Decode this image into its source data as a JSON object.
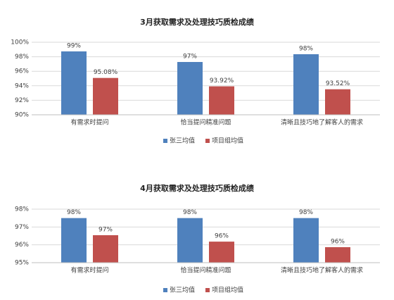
{
  "chart_data": [
    {
      "type": "bar",
      "title": "3月获取需求及处理技巧质检成绩",
      "categories": [
        "有需求时提问",
        "恰当提问精准问题",
        "清晰且技巧地了解客人的需求"
      ],
      "series": [
        {
          "name": "张三均值",
          "color": "#4f81bd",
          "values": [
            98.74,
            97.28,
            98.35
          ],
          "value_labels": [
            "99%",
            "97%",
            "98%"
          ]
        },
        {
          "name": "项目组均值",
          "color": "#c0504d",
          "values": [
            95.08,
            93.92,
            93.52
          ],
          "value_labels": [
            "95.08%",
            "93.92%",
            "93.52%"
          ]
        }
      ],
      "ylim": [
        90,
        100
      ],
      "yticks": [
        {
          "value": 90,
          "label": "90%"
        },
        {
          "value": 92,
          "label": "92%"
        },
        {
          "value": 94,
          "label": "94%"
        },
        {
          "value": 96,
          "label": "96%"
        },
        {
          "value": 98,
          "label": "98%"
        },
        {
          "value": 100,
          "label": "100%"
        }
      ],
      "grid": true,
      "legend": "bottom"
    },
    {
      "type": "bar",
      "title": "4月获取需求及处理技巧质检成绩",
      "categories": [
        "有需求时提问",
        "恰当提问精准问题",
        "清晰且技巧地了解客人的需求"
      ],
      "series": [
        {
          "name": "张三均值",
          "color": "#4f81bd",
          "values": [
            97.5,
            97.5,
            97.5
          ],
          "value_labels": [
            "98%",
            "98%",
            "98%"
          ]
        },
        {
          "name": "项目组均值",
          "color": "#c0504d",
          "values": [
            96.54,
            96.18,
            95.87
          ],
          "value_labels": [
            "97%",
            "96%",
            "96%"
          ]
        }
      ],
      "ylim": [
        95,
        98
      ],
      "yticks": [
        {
          "value": 95,
          "label": "95%"
        },
        {
          "value": 96,
          "label": "96%"
        },
        {
          "value": 97,
          "label": "97%"
        },
        {
          "value": 98,
          "label": "98%"
        }
      ],
      "grid": true,
      "legend": "bottom"
    }
  ]
}
